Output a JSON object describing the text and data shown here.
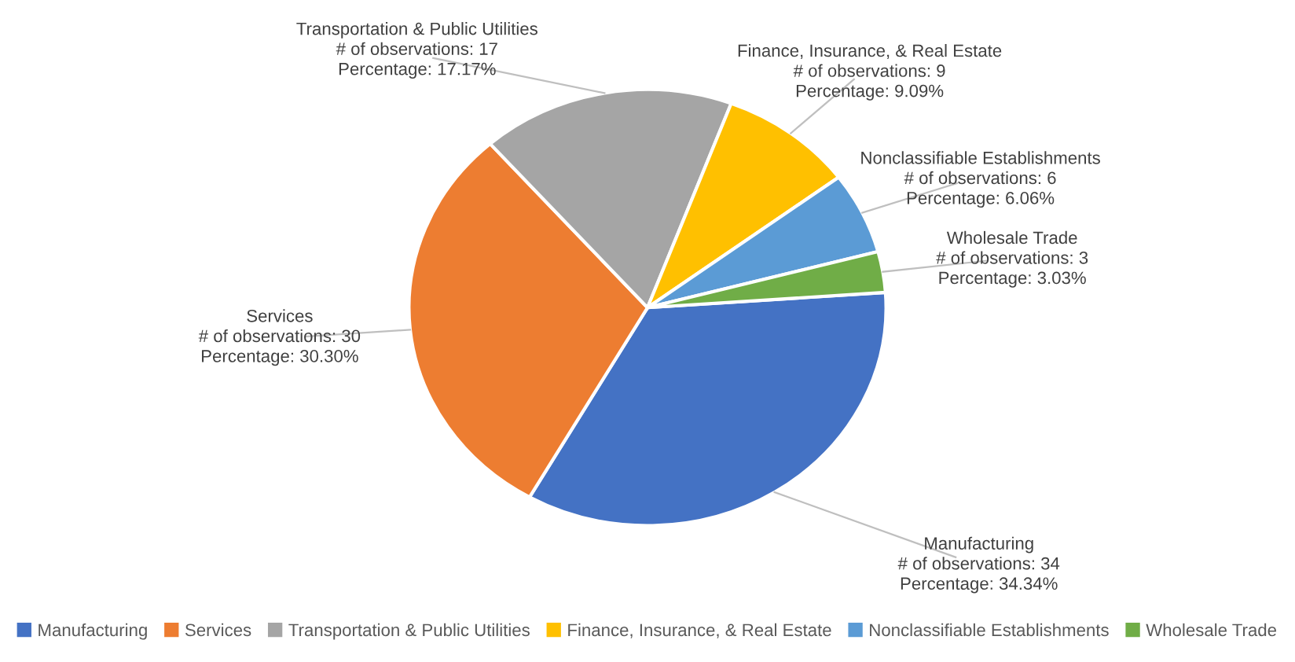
{
  "chart_data": {
    "type": "pie",
    "categories": [
      "Manufacturing",
      "Services",
      "Transportation & Public Utilities",
      "Finance, Insurance, & Real Estate",
      "Nonclassifiable Establishments",
      "Wholesale Trade"
    ],
    "values": [
      34,
      30,
      17,
      9,
      6,
      3
    ],
    "colors": [
      "#4472c4",
      "#ed7d31",
      "#a5a5a5",
      "#ffc000",
      "#5b9bd5",
      "#70ad47"
    ],
    "value_labels": [
      "# of observations: 34\nPercentage: 34.34%",
      "# of observations: 30\nPercentage: 30.30%",
      "# of observations: 17\nPercentage: 17.17%",
      "# of observations: 9\nPercentage: 9.09%",
      "# of observations: 6\nPercentage: 6.06%",
      "# of observations: 3\nPercentage: 3.03%"
    ],
    "legend": "bottom"
  }
}
